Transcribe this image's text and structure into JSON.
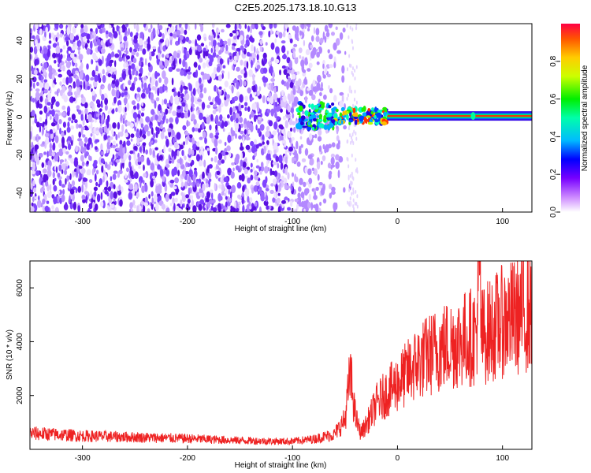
{
  "title": "C2E5.2025.173.18.10.G13",
  "chart_data": [
    {
      "type": "heatmap",
      "xlabel": "Height of straight line (km)",
      "ylabel": "Frequency (Hz)",
      "xlim": [
        -350,
        128
      ],
      "ylim": [
        -50,
        49
      ],
      "xticks": [
        -300,
        -200,
        -100,
        0,
        100
      ],
      "yticks": [
        -40,
        -20,
        0,
        20,
        40
      ],
      "colorbar": {
        "label": "Normalized spectral amplitude",
        "range": [
          0,
          1
        ],
        "ticks": [
          0.0,
          0.2,
          0.4,
          0.6,
          0.8
        ]
      },
      "dominant_line": {
        "frequency_hz": 0.5,
        "x_start": -95,
        "x_end": 128
      },
      "noise_region_x": [
        -350,
        -80
      ]
    },
    {
      "type": "line",
      "xlabel": "Height of straight line (km)",
      "ylabel": "SNR (10 * v/v)",
      "xlim": [
        -350,
        128
      ],
      "ylim": [
        0,
        7000
      ],
      "xticks": [
        -300,
        -200,
        -100,
        0,
        100
      ],
      "yticks": [
        2000,
        4000,
        6000
      ],
      "series": [
        {
          "color": "#ee2222",
          "x": [
            -350,
            -300,
            -250,
            -200,
            -150,
            -120,
            -100,
            -80,
            -60,
            -50,
            -45,
            -40,
            -35,
            -30,
            -20,
            -10,
            0,
            20,
            40,
            60,
            75,
            78,
            80,
            100,
            128
          ],
          "y": [
            600,
            500,
            450,
            400,
            330,
            300,
            300,
            380,
            560,
            1100,
            2800,
            1200,
            600,
            900,
            1700,
            2100,
            2450,
            3250,
            3750,
            4050,
            4250,
            6700,
            4200,
            4750,
            5150
          ]
        }
      ]
    }
  ]
}
